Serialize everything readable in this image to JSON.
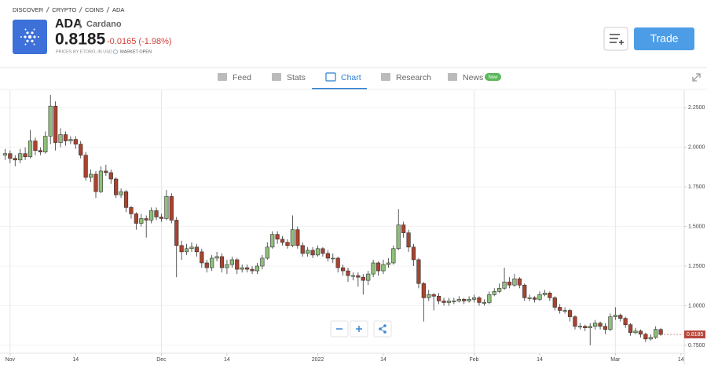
{
  "header": {
    "breadcrumb": [
      "DISCOVER",
      "CRYPTO",
      "COINS",
      "ADA"
    ],
    "symbol": "ADA",
    "name": "Cardano",
    "price": "0.8185",
    "change": "-0.0165 (-1.98%)",
    "note": "PRICES BY ETORO, IN USD",
    "status": "MARKET OPEN",
    "button": "Trade"
  },
  "tabs": {
    "items": [
      "Feed",
      "Stats",
      "Chart",
      "Research",
      "News"
    ],
    "badge": "New"
  },
  "chart_data": {
    "type": "candlestick",
    "open": [
      1.95,
      1.96,
      1.93,
      1.92,
      1.96,
      1.94,
      2.04,
      1.98,
      1.97,
      2.07,
      2.26,
      2.03,
      2.08,
      2.04,
      2.05,
      2.02,
      1.95,
      1.81,
      1.83,
      1.72,
      1.85,
      1.84,
      1.8,
      1.7,
      1.72,
      1.62,
      1.58,
      1.52,
      1.55,
      1.54,
      1.6,
      1.56,
      1.55,
      1.69,
      1.54,
      1.38,
      1.34,
      1.36,
      1.37,
      1.34,
      1.27,
      1.24,
      1.3,
      1.31,
      1.24,
      1.26,
      1.29,
      1.23,
      1.24,
      1.23,
      1.22,
      1.25,
      1.3,
      1.37,
      1.45,
      1.42,
      1.4,
      1.38,
      1.48,
      1.38,
      1.33,
      1.35,
      1.32,
      1.36,
      1.33,
      1.3,
      1.3,
      1.24,
      1.22,
      1.19,
      1.19,
      1.18,
      1.16,
      1.2,
      1.27,
      1.22,
      1.26,
      1.27,
      1.36,
      1.51,
      1.46,
      1.37,
      1.29,
      1.14,
      1.05,
      1.07,
      1.06,
      1.03,
      1.02,
      1.03,
      1.03,
      1.04,
      1.03,
      1.04,
      1.05,
      1.02,
      1.02,
      1.07,
      1.09,
      1.11,
      1.15,
      1.13,
      1.17,
      1.13,
      1.05,
      1.05,
      1.04,
      1.07,
      1.08,
      1.05,
      0.99,
      0.97,
      0.97,
      0.93,
      0.87,
      0.87,
      0.86,
      0.87,
      0.89,
      0.87,
      0.85,
      0.93,
      0.94,
      0.92,
      0.88,
      0.83,
      0.84,
      0.82,
      0.79,
      0.8,
      0.85
    ],
    "high": [
      1.99,
      1.98,
      1.95,
      1.99,
      2.0,
      2.11,
      2.06,
      2.0,
      2.1,
      2.33,
      2.29,
      2.12,
      2.1,
      2.07,
      2.07,
      2.04,
      1.97,
      1.86,
      1.85,
      1.88,
      1.89,
      1.86,
      1.81,
      1.74,
      1.73,
      1.63,
      1.59,
      1.58,
      1.57,
      1.62,
      1.62,
      1.58,
      1.73,
      1.71,
      1.56,
      1.41,
      1.39,
      1.4,
      1.39,
      1.36,
      1.29,
      1.32,
      1.34,
      1.33,
      1.29,
      1.31,
      1.3,
      1.26,
      1.26,
      1.25,
      1.27,
      1.32,
      1.4,
      1.47,
      1.47,
      1.44,
      1.42,
      1.57,
      1.5,
      1.4,
      1.37,
      1.37,
      1.38,
      1.37,
      1.35,
      1.33,
      1.31,
      1.26,
      1.24,
      1.21,
      1.21,
      1.2,
      1.22,
      1.29,
      1.28,
      1.29,
      1.3,
      1.38,
      1.61,
      1.53,
      1.48,
      1.39,
      1.3,
      1.15,
      1.1,
      1.08,
      1.08,
      1.05,
      1.05,
      1.05,
      1.06,
      1.05,
      1.06,
      1.07,
      1.06,
      1.04,
      1.09,
      1.11,
      1.14,
      1.24,
      1.18,
      1.2,
      1.18,
      1.14,
      1.07,
      1.06,
      1.09,
      1.1,
      1.09,
      1.06,
      1.01,
      0.99,
      0.98,
      0.94,
      0.89,
      0.88,
      0.89,
      0.91,
      0.9,
      0.89,
      0.95,
      0.99,
      0.95,
      0.93,
      0.89,
      0.86,
      0.85,
      0.83,
      0.82,
      0.87,
      0.86
    ],
    "low": [
      1.92,
      1.9,
      1.88,
      1.9,
      1.92,
      1.93,
      1.95,
      1.95,
      1.96,
      2.02,
      1.98,
      2.0,
      2.01,
      2.02,
      1.99,
      1.93,
      1.79,
      1.78,
      1.68,
      1.71,
      1.82,
      1.77,
      1.68,
      1.68,
      1.59,
      1.55,
      1.48,
      1.5,
      1.43,
      1.52,
      1.54,
      1.53,
      1.54,
      1.52,
      1.18,
      1.29,
      1.32,
      1.34,
      1.31,
      1.24,
      1.21,
      1.22,
      1.28,
      1.21,
      1.2,
      1.24,
      1.2,
      1.21,
      1.21,
      1.2,
      1.2,
      1.23,
      1.29,
      1.36,
      1.39,
      1.38,
      1.36,
      1.37,
      1.36,
      1.31,
      1.31,
      1.3,
      1.31,
      1.31,
      1.28,
      1.27,
      1.21,
      1.19,
      1.15,
      1.16,
      1.12,
      1.07,
      1.13,
      1.18,
      1.19,
      1.2,
      1.24,
      1.26,
      1.35,
      1.43,
      1.34,
      1.25,
      1.11,
      0.9,
      1.03,
      0.97,
      1.01,
      1.0,
      1.0,
      1.01,
      1.02,
      1.01,
      1.02,
      1.02,
      1.0,
      1.0,
      1.01,
      1.06,
      1.08,
      1.1,
      1.11,
      1.12,
      1.11,
      1.03,
      1.03,
      1.02,
      1.03,
      1.06,
      1.03,
      0.97,
      0.95,
      0.95,
      0.9,
      0.85,
      0.85,
      0.84,
      0.75,
      0.85,
      0.85,
      0.82,
      0.84,
      0.91,
      0.9,
      0.86,
      0.81,
      0.82,
      0.8,
      0.77,
      0.78,
      0.79,
      0.81
    ],
    "close": [
      1.96,
      1.93,
      1.92,
      1.96,
      1.94,
      2.04,
      1.98,
      1.97,
      2.07,
      2.26,
      2.03,
      2.08,
      2.04,
      2.05,
      2.02,
      1.95,
      1.81,
      1.83,
      1.72,
      1.85,
      1.84,
      1.8,
      1.7,
      1.72,
      1.62,
      1.58,
      1.52,
      1.55,
      1.54,
      1.6,
      1.56,
      1.55,
      1.69,
      1.54,
      1.38,
      1.34,
      1.36,
      1.37,
      1.34,
      1.27,
      1.24,
      1.3,
      1.31,
      1.24,
      1.26,
      1.29,
      1.23,
      1.24,
      1.23,
      1.22,
      1.25,
      1.3,
      1.37,
      1.45,
      1.42,
      1.4,
      1.38,
      1.48,
      1.38,
      1.33,
      1.35,
      1.32,
      1.36,
      1.33,
      1.3,
      1.3,
      1.24,
      1.22,
      1.19,
      1.19,
      1.18,
      1.16,
      1.2,
      1.27,
      1.22,
      1.26,
      1.27,
      1.36,
      1.51,
      1.46,
      1.37,
      1.29,
      1.14,
      1.05,
      1.07,
      1.06,
      1.03,
      1.02,
      1.03,
      1.03,
      1.04,
      1.03,
      1.04,
      1.05,
      1.02,
      1.02,
      1.07,
      1.09,
      1.11,
      1.15,
      1.13,
      1.17,
      1.13,
      1.05,
      1.05,
      1.04,
      1.07,
      1.08,
      1.05,
      0.99,
      0.97,
      0.97,
      0.93,
      0.87,
      0.87,
      0.86,
      0.87,
      0.89,
      0.87,
      0.85,
      0.93,
      0.94,
      0.92,
      0.88,
      0.83,
      0.84,
      0.82,
      0.79,
      0.8,
      0.85,
      0.8185
    ],
    "up_color": "#8fbf7a",
    "down_color": "#a8432f",
    "xlim": [
      -1,
      134.5
    ],
    "xticks": [
      {
        "value": 1,
        "label": "Nov"
      },
      14,
      {
        "value": 31,
        "label": "Dec"
      },
      {
        "value": 44,
        "label": "14"
      },
      {
        "value": 62,
        "label": "2022"
      },
      {
        "value": 75,
        "label": "14"
      },
      {
        "value": 93,
        "label": "Feb"
      },
      {
        "value": 106,
        "label": "14"
      },
      {
        "value": 121,
        "label": "Mar"
      },
      {
        "value": 134,
        "label": "14"
      }
    ],
    "ylim": [
      0.7,
      2.36
    ],
    "yticks": [
      {
        "value": 0.75,
        "label": "0.7500"
      },
      {
        "value": 1,
        "label": "1.0000"
      },
      {
        "value": 1.25,
        "label": "1.2500"
      },
      {
        "value": 1.5,
        "label": "1.5000"
      },
      {
        "value": 1.75,
        "label": "1.7500"
      },
      {
        "value": 2,
        "label": "2.0000"
      },
      {
        "value": 2.25,
        "label": "2.2500"
      }
    ],
    "grid": true
  }
}
